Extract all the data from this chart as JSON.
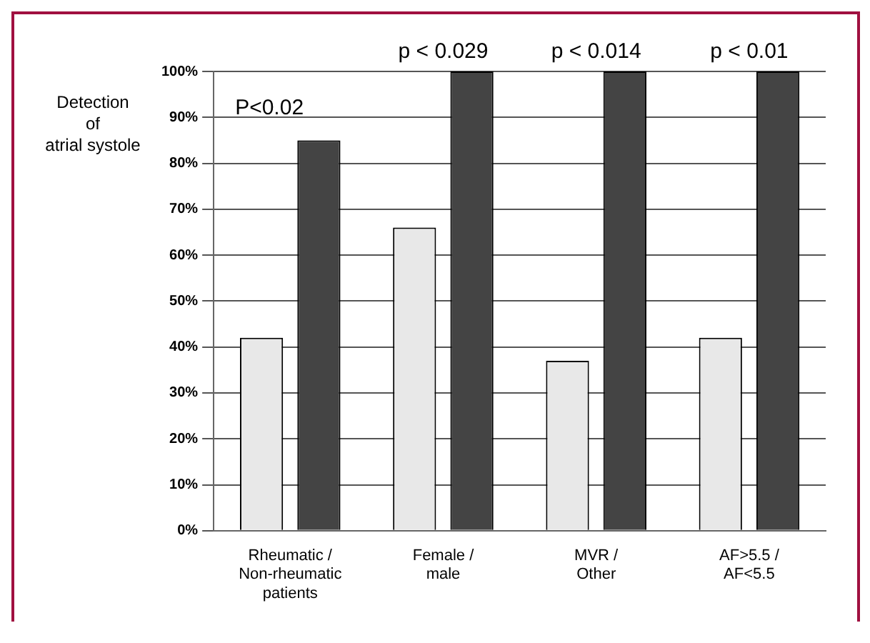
{
  "chart_data": {
    "type": "bar",
    "ylabel": "Detection\nof\natrial systole",
    "categories": [
      "Rheumatic /\nNon-rheumatic\npatients",
      "Female /\nmale",
      "MVR /\nOther",
      "AF>5.5 /\nAF<5.5"
    ],
    "series": [
      {
        "color": "#e8e8e8",
        "values": [
          42,
          66,
          37,
          42
        ]
      },
      {
        "color": "#444444",
        "values": [
          85,
          100,
          100,
          100
        ]
      }
    ],
    "ylim": [
      0,
      100
    ],
    "yticks": [
      {
        "value": 0,
        "label": "0%"
      },
      {
        "value": 10,
        "label": "10%"
      },
      {
        "value": 20,
        "label": "20%"
      },
      {
        "value": 30,
        "label": "30%"
      },
      {
        "value": 40,
        "label": "40%"
      },
      {
        "value": 50,
        "label": "50%"
      },
      {
        "value": 60,
        "label": "60%"
      },
      {
        "value": 70,
        "label": "70%"
      },
      {
        "value": 80,
        "label": "80%"
      },
      {
        "value": 90,
        "label": "90%"
      },
      {
        "value": 100,
        "label": "100%"
      }
    ],
    "grid": "y",
    "legend": false,
    "annotations": [
      "P<0.02",
      "p < 0.029",
      "p < 0.014",
      "p < 0.01"
    ]
  }
}
